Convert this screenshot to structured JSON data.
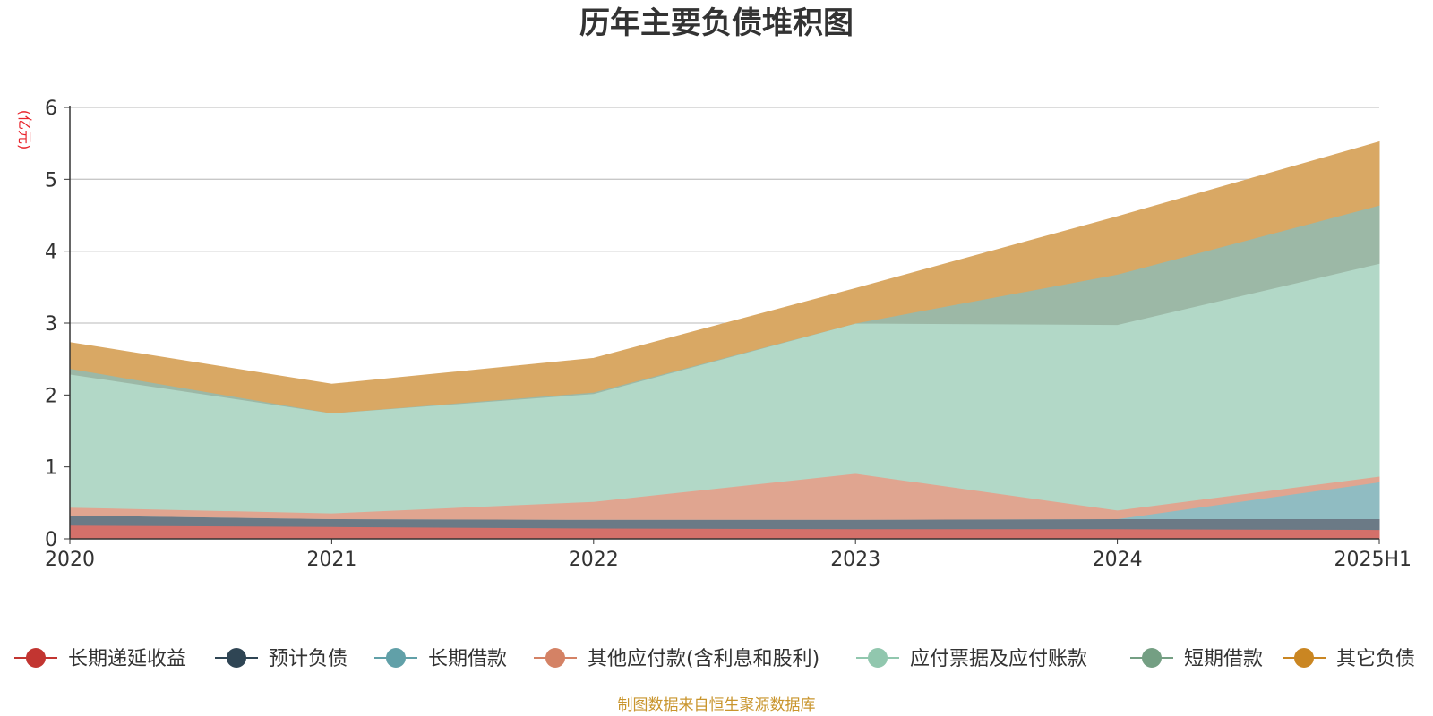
{
  "chart_data": {
    "type": "area",
    "stacked": true,
    "title": "历年主要负债堆积图",
    "ylabel": "(亿元)",
    "xlabel": "",
    "categories": [
      "2020",
      "2021",
      "2022",
      "2023",
      "2024",
      "2025H1"
    ],
    "ylim": [
      0,
      6
    ],
    "yticks": [
      "0",
      "1",
      "2",
      "3",
      "4",
      "5",
      "6"
    ],
    "grid": true,
    "legend_position": "bottom",
    "series": [
      {
        "name": "长期递延收益",
        "color": "#c23531",
        "area_color": "#d4706a",
        "values": [
          0.19,
          0.17,
          0.15,
          0.14,
          0.14,
          0.13
        ]
      },
      {
        "name": "预计负债",
        "color": "#2f4554",
        "area_color": "#6b7a86",
        "values": [
          0.14,
          0.11,
          0.12,
          0.13,
          0.14,
          0.15
        ]
      },
      {
        "name": "长期借款",
        "color": "#61a0a8",
        "area_color": "#90bcc2",
        "values": [
          0.0,
          0.0,
          0.0,
          0.0,
          0.0,
          0.51
        ]
      },
      {
        "name": "其他应付款(含利息和股利)",
        "color": "#d48265",
        "area_color": "#e0a590",
        "values": [
          0.11,
          0.08,
          0.25,
          0.64,
          0.12,
          0.08
        ]
      },
      {
        "name": "应付票据及应付账款",
        "color": "#91c7ae",
        "area_color": "#b2d8c7",
        "values": [
          1.85,
          1.39,
          1.5,
          2.09,
          2.58,
          2.96
        ]
      },
      {
        "name": "短期借款",
        "color": "#749f83",
        "area_color": "#9cb8a6",
        "values": [
          0.08,
          0.0,
          0.02,
          0.0,
          0.7,
          0.81
        ]
      },
      {
        "name": "其它负债",
        "color": "#ca8622",
        "area_color": "#d9a864",
        "values": [
          0.36,
          0.4,
          0.47,
          0.48,
          0.8,
          0.88
        ]
      }
    ]
  },
  "source_note": "制图数据来自恒生聚源数据库"
}
